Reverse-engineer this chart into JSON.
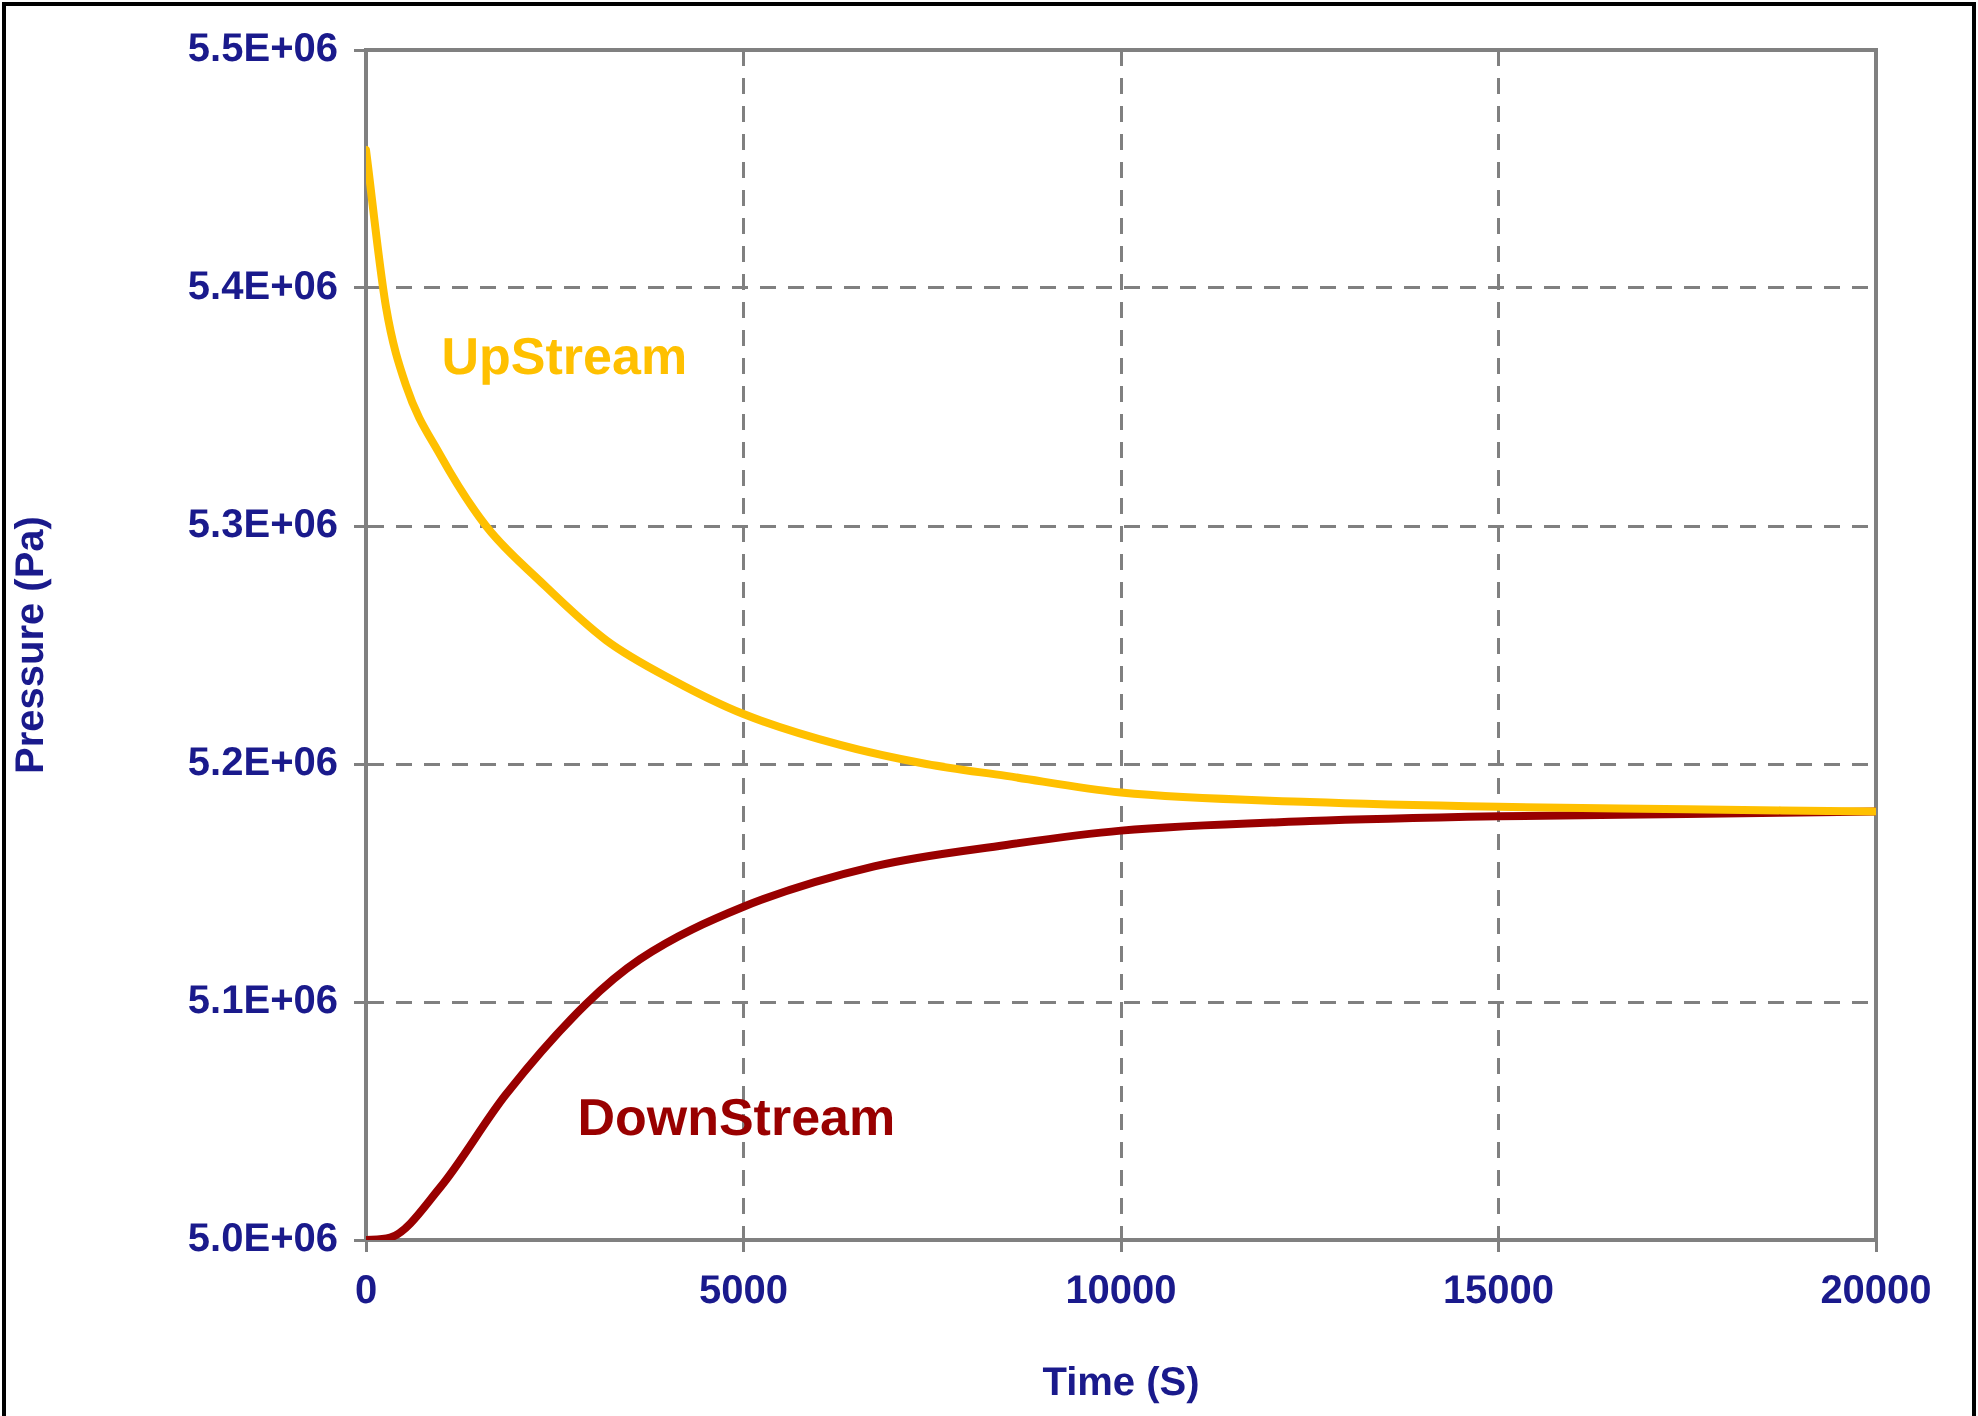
{
  "chart_data": {
    "type": "line",
    "xlabel": "Time (S)",
    "ylabel": "Pressure (Pa)",
    "xlim": [
      0,
      20000
    ],
    "xticks": [
      0,
      5000,
      10000,
      15000,
      20000
    ],
    "ylim": [
      5000000,
      5500000
    ],
    "yticks": [
      {
        "value": 5000000,
        "label": "5.0E+06"
      },
      {
        "value": 5100000,
        "label": "5.1E+06"
      },
      {
        "value": 5200000,
        "label": "5.2E+06"
      },
      {
        "value": 5300000,
        "label": "5.3E+06"
      },
      {
        "value": 5400000,
        "label": "5.4E+06"
      },
      {
        "value": 5500000,
        "label": "5.5E+06"
      }
    ],
    "grid": true,
    "line_style": "solid",
    "marker": "none",
    "legend": false,
    "series": [
      {
        "name": "UpStream",
        "color": "#ffc000",
        "x": [
          0,
          265,
          530,
          980,
          1590,
          2300,
          3180,
          4080,
          5000,
          6280,
          7420,
          8480,
          10000,
          12500,
          15000,
          17500,
          20000
        ],
        "values": [
          5458000,
          5392000,
          5359000,
          5330000,
          5300000,
          5277000,
          5252000,
          5235000,
          5221000,
          5208000,
          5200000,
          5195000,
          5188000,
          5184000,
          5182000,
          5181000,
          5180000
        ]
      },
      {
        "name": "DownStream",
        "color": "#990000",
        "x": [
          0,
          320,
          980,
          1850,
          2910,
          3630,
          5000,
          6730,
          8480,
          10000,
          12500,
          15000,
          17500,
          20000
        ],
        "values": [
          5000000,
          5001000,
          5022000,
          5061000,
          5099000,
          5118000,
          5140000,
          5157000,
          5166000,
          5172000,
          5176000,
          5178000,
          5179000,
          5180000
        ]
      }
    ]
  }
}
